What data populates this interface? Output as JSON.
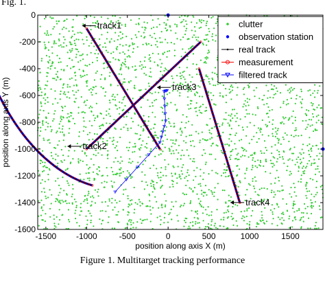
{
  "figure_label": "Fig. 1.",
  "caption": "Figure 1. Multitarget tracking performance",
  "chart_data": {
    "type": "scatter",
    "title": "",
    "xlabel": "position along axis X (m)",
    "ylabel": "position along axis Y (m)",
    "xlim": [
      -1600,
      1900
    ],
    "ylim": [
      -1600,
      0
    ],
    "xticks": [
      -1500,
      -1000,
      -500,
      0,
      500,
      1000,
      1500
    ],
    "yticks": [
      0,
      -200,
      -400,
      -600,
      -800,
      -1000,
      -1200,
      -1400,
      -1600
    ],
    "grid": false,
    "legend_position": "top-right",
    "legend": [
      {
        "label": "clutter",
        "marker": "dot",
        "color": "#33cc33"
      },
      {
        "label": "observation station",
        "marker": "star",
        "color": "#0000ff"
      },
      {
        "label": "real track",
        "marker": "line",
        "color": "#000000"
      },
      {
        "label": "measurement",
        "marker": "circle",
        "color": "#ff0000"
      },
      {
        "label": "filtered track",
        "marker": "triangle",
        "color": "#0000ff"
      }
    ],
    "observation_stations": [
      {
        "x": 0,
        "y": 0
      },
      {
        "x": 1900,
        "y": -1000
      }
    ],
    "tracks": [
      {
        "label": "track1",
        "points": [
          [
            -1000,
            -100
          ],
          [
            -100,
            -1000
          ]
        ],
        "label_at": [
          -870,
          -100
        ]
      },
      {
        "label": "track2",
        "type": "arc",
        "center": [
          -600,
          600
        ],
        "radius": 1900,
        "angle_start": 180,
        "angle_end": 260,
        "label_at": [
          -1050,
          -1000
        ]
      },
      {
        "label": "track3",
        "points": [
          [
            -1000,
            -1000
          ],
          [
            400,
            -200
          ]
        ],
        "label_at": [
          50,
          -560
        ]
      },
      {
        "label": "track4",
        "points": [
          [
            380,
            -400
          ],
          [
            880,
            -1400
          ]
        ],
        "label_at": [
          950,
          -1420
        ]
      }
    ],
    "spurious_filtered_track": [
      [
        -650,
        -1320
      ],
      [
        -100,
        -950
      ],
      [
        -30,
        -790
      ],
      [
        -50,
        -570
      ],
      [
        0,
        -560
      ]
    ],
    "clutter_count": 2600,
    "colors": {
      "clutter": "#33cc33",
      "track_line": "#000000",
      "measurement": "#ff0000",
      "filtered": "#0000ff"
    }
  }
}
